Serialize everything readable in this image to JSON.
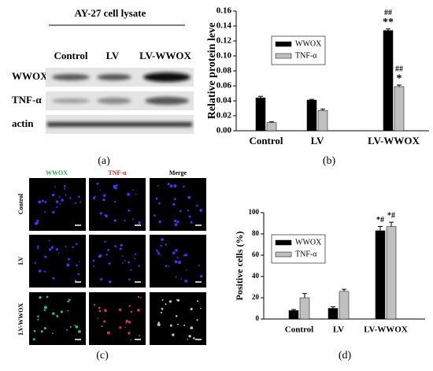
{
  "blot": {
    "title": "AY-27 cell lysate",
    "columns": [
      "Control",
      "LV",
      "LV-WWOX"
    ],
    "rows": [
      "WWOX",
      "TNF-α",
      "actin"
    ]
  },
  "microscopy": {
    "columns": [
      "WWOX",
      "TNF-α",
      "Merge"
    ],
    "rows": [
      "Control",
      "LV",
      "LV-WWOX"
    ]
  },
  "panel_labels": [
    "(a)",
    "(b)",
    "(c)",
    "(d)"
  ],
  "chart_data": [
    {
      "type": "bar",
      "ylabel": "Relative protein leve",
      "categories": [
        "Control",
        "LV",
        "LV-WWOX"
      ],
      "ylim": [
        0,
        0.16
      ],
      "yticks": [
        {
          "value": 0,
          "label": "0.00"
        },
        {
          "value": 0.02,
          "label": "0.02"
        },
        {
          "value": 0.04,
          "label": "0.04"
        },
        {
          "value": 0.06,
          "label": "0.06"
        },
        {
          "value": 0.08,
          "label": "0.08"
        },
        {
          "value": 0.1,
          "label": "0.10"
        },
        {
          "value": 0.12,
          "label": "0.12"
        },
        {
          "value": 0.14,
          "label": "0.14"
        },
        {
          "value": 0.16,
          "label": "0.16"
        }
      ],
      "series": [
        {
          "name": "WWOX",
          "color": "#000000",
          "values": [
            0.044,
            0.041,
            0.134
          ],
          "errors": [
            0.002,
            0.001,
            0.002
          ],
          "annotations": [
            null,
            null,
            [
              "##",
              "**"
            ]
          ]
        },
        {
          "name": "TNF-α",
          "color": "#c0c0c0",
          "values": [
            0.011,
            0.027,
            0.059
          ],
          "errors": [
            0.001,
            0.002,
            0.002
          ],
          "annotations": [
            null,
            null,
            [
              "##",
              "*"
            ]
          ]
        }
      ]
    },
    {
      "type": "bar",
      "ylabel": "Positive cells (%)",
      "categories": [
        "Control",
        "LV",
        "LV-WWOX"
      ],
      "ylim": [
        0,
        100
      ],
      "yticks": [
        0,
        20,
        40,
        60,
        80,
        100
      ],
      "series": [
        {
          "name": "WWOX",
          "color": "#000000",
          "values": [
            8,
            10,
            83
          ],
          "errors": [
            1,
            1.5,
            4
          ],
          "annotations": [
            null,
            null,
            [
              "*#"
            ]
          ]
        },
        {
          "name": "TNF-α",
          "color": "#c0c0c0",
          "values": [
            20,
            26,
            87
          ],
          "errors": [
            4,
            2,
            4
          ],
          "annotations": [
            null,
            null,
            [
              "*#"
            ]
          ]
        }
      ]
    }
  ]
}
